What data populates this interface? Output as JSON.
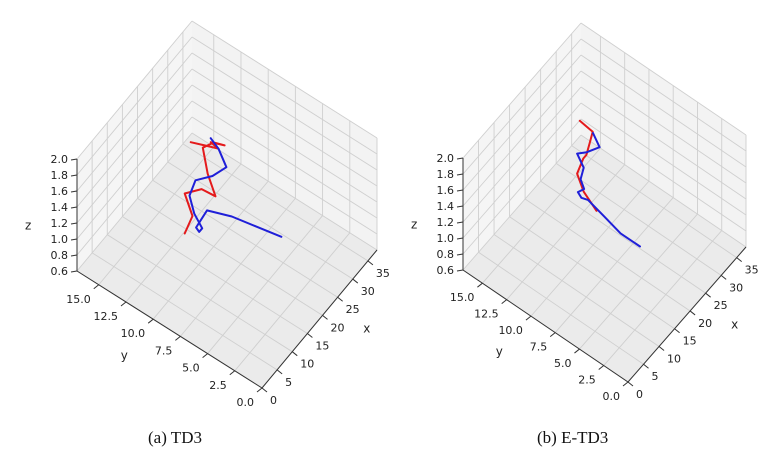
{
  "chart_data": [
    {
      "type": "line3d",
      "caption": "(a) TD3",
      "xlabel": "x",
      "ylabel": "y",
      "zlabel": "z",
      "xticks": [
        "0",
        "5",
        "10",
        "15",
        "20",
        "25",
        "30",
        "35"
      ],
      "yticks": [
        "0.0",
        "2.5",
        "5.0",
        "7.5",
        "10.0",
        "12.5",
        "15.0"
      ],
      "zticks": [
        "0.6",
        "0.8",
        "1.0",
        "1.2",
        "1.4",
        "1.6",
        "1.8",
        "2.0"
      ],
      "xlim": [
        0,
        38
      ],
      "ylim": [
        0,
        17
      ],
      "zlim": [
        0.6,
        2.0
      ],
      "series": [
        {
          "name": "red",
          "color": "#e41a1c",
          "x": [
            14,
            13,
            14,
            16,
            17,
            18,
            20,
            20,
            20,
            19,
            18,
            17,
            16
          ],
          "y": [
            11,
            10,
            11,
            10,
            9,
            10,
            11,
            10,
            9,
            10,
            9,
            10,
            11
          ],
          "z": [
            0.95,
            1.3,
            1.45,
            1.5,
            1.45,
            1.6,
            1.75,
            1.9,
            1.95,
            1.95,
            2.0,
            2.0,
            2.0
          ]
        },
        {
          "name": "blue",
          "color": "#1f1fd8",
          "x": [
            10,
            9,
            8,
            7,
            7,
            8,
            9,
            10,
            12,
            14,
            16,
            17,
            18,
            19
          ],
          "y": [
            1,
            3,
            5,
            7,
            8,
            8,
            8,
            9,
            10,
            10,
            9,
            8,
            9,
            10
          ],
          "z": [
            1.95,
            1.95,
            1.95,
            1.9,
            1.6,
            1.5,
            1.5,
            1.55,
            1.6,
            1.7,
            1.75,
            1.9,
            2.0,
            2.0
          ]
        }
      ]
    },
    {
      "type": "line3d",
      "caption": "(b) E-TD3",
      "xlabel": "x",
      "ylabel": "y",
      "zlabel": "z",
      "xticks": [
        "0",
        "5",
        "10",
        "15",
        "20",
        "25",
        "30",
        "35"
      ],
      "yticks": [
        "0.0",
        "2.5",
        "5.0",
        "7.5",
        "10.0",
        "12.5",
        "15.0"
      ],
      "zticks": [
        "0.6",
        "0.8",
        "1.0",
        "1.2",
        "1.4",
        "1.6",
        "1.8",
        "2.0"
      ],
      "xlim": [
        0,
        38
      ],
      "ylim": [
        0,
        17
      ],
      "zlim": [
        0.6,
        2.0
      ],
      "series": [
        {
          "name": "red",
          "color": "#e41a1c",
          "x": [
            18,
            17,
            18,
            20,
            21,
            22,
            23,
            22
          ],
          "y": [
            9,
            10,
            11,
            11,
            11,
            11,
            11,
            12
          ],
          "z": [
            1.2,
            1.4,
            1.5,
            1.6,
            1.6,
            1.7,
            1.8,
            1.9
          ]
        },
        {
          "name": "blue",
          "color": "#1f1fd8",
          "x": [
            7,
            7,
            8,
            9,
            10,
            12,
            14,
            16,
            17,
            18,
            18,
            19,
            20
          ],
          "y": [
            1,
            3,
            5,
            7,
            8,
            9,
            9,
            10,
            10,
            11,
            10,
            9,
            10
          ],
          "z": [
            1.9,
            1.9,
            1.9,
            1.9,
            1.8,
            1.7,
            1.65,
            1.6,
            1.7,
            1.75,
            1.85,
            1.95,
            2.0
          ]
        }
      ]
    }
  ]
}
